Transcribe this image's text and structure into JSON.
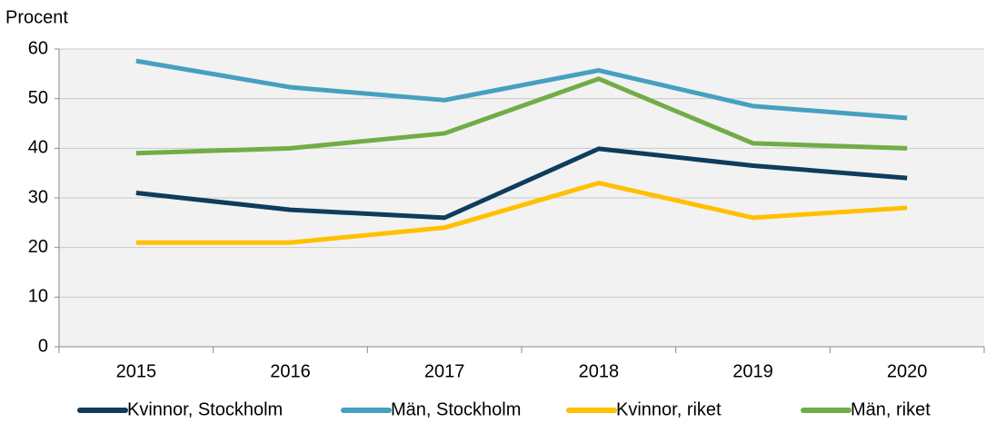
{
  "chart_data": {
    "type": "line",
    "y_label": "Procent",
    "categories": [
      "2015",
      "2016",
      "2017",
      "2018",
      "2019",
      "2020"
    ],
    "series": [
      {
        "name": "Kvinnor, Stockholm",
        "color": "#0e3c5c",
        "values": [
          31,
          27.6,
          26,
          39.9,
          36.5,
          34
        ]
      },
      {
        "name": "Män, Stockholm",
        "color": "#46a0c0",
        "values": [
          57.6,
          52.3,
          49.7,
          55.7,
          48.5,
          46.1
        ]
      },
      {
        "name": "Kvinnor, riket",
        "color": "#ffc000",
        "values": [
          21,
          21,
          24,
          33,
          26,
          28
        ]
      },
      {
        "name": "Män, riket",
        "color": "#70ad47",
        "values": [
          39,
          40,
          43,
          54,
          41,
          40
        ]
      }
    ],
    "ylim": [
      0,
      60
    ],
    "yticks": [
      0,
      10,
      20,
      30,
      40,
      50,
      60
    ],
    "grid": true,
    "legend": "bottom"
  }
}
